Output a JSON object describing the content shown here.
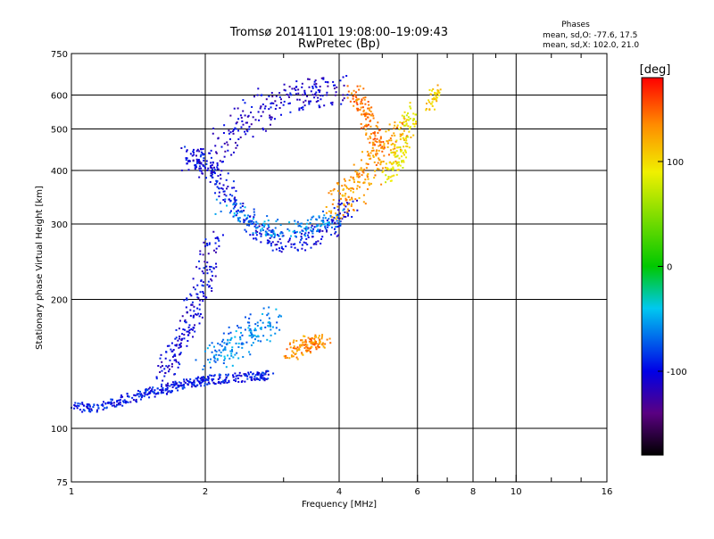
{
  "chart_data": {
    "type": "scatter",
    "title": "Tromsø 20141101 19:08:00–19:09:43",
    "subtitle": "RwPretec (Bp)",
    "stats": {
      "heading": "Phases",
      "line_o": "mean, sd,O: -77.6, 17.5",
      "line_x": "mean, sd,X: 102.0, 21.0"
    },
    "xlabel": "Frequency [MHz]",
    "ylabel": "Stationary phase Virtual Height [km]",
    "x_scale": "log",
    "y_scale": "log",
    "xlim": [
      1,
      16
    ],
    "ylim": [
      75,
      750
    ],
    "x_ticks": [
      {
        "value": 1,
        "label": "1"
      },
      {
        "value": 2,
        "label": "2"
      },
      {
        "value": 4,
        "label": "4"
      },
      {
        "value": 6,
        "label": "6"
      },
      {
        "value": 8,
        "label": "8"
      },
      {
        "value": 10,
        "label": "10"
      },
      {
        "value": 16,
        "label": "16"
      }
    ],
    "y_ticks": [
      {
        "value": 75,
        "label": "75"
      },
      {
        "value": 100,
        "label": "100"
      },
      {
        "value": 200,
        "label": "200"
      },
      {
        "value": 300,
        "label": "300"
      },
      {
        "value": 400,
        "label": "400"
      },
      {
        "value": 500,
        "label": "500"
      },
      {
        "value": 600,
        "label": "600"
      },
      {
        "value": 750,
        "label": "750"
      }
    ],
    "grid": true,
    "colorbar": {
      "label": "[deg]",
      "range": [
        -180,
        180
      ],
      "ticks": [
        {
          "value": 100,
          "label": "100"
        },
        {
          "value": 0,
          "label": "0"
        },
        {
          "value": -100,
          "label": "-100"
        }
      ]
    },
    "traces": [
      {
        "x": [
          1.0,
          1.15,
          1.3,
          1.45,
          1.6,
          1.75,
          1.9,
          2.05,
          2.3,
          2.6,
          2.8
        ],
        "y": [
          112,
          112,
          116,
          120,
          123,
          126,
          128,
          130,
          131,
          132,
          133
        ],
        "phase": -95,
        "spread": 0.05
      },
      {
        "x": [
          1.6,
          1.7,
          1.8,
          1.9,
          2.0,
          2.1
        ],
        "y": [
          130,
          150,
          170,
          195,
          230,
          280
        ],
        "phase": -105,
        "spread": 0.1
      },
      {
        "x": [
          2.0,
          2.2,
          2.4,
          2.6,
          2.8
        ],
        "y": [
          140,
          150,
          160,
          170,
          180
        ],
        "phase": -60,
        "spread": 0.15
      },
      {
        "x": [
          1.85,
          1.95,
          2.1,
          2.3,
          2.6,
          3.0,
          3.4,
          3.9,
          4.2
        ],
        "y": [
          440,
          420,
          390,
          340,
          290,
          270,
          275,
          300,
          330
        ],
        "phase": -100,
        "spread": 0.1
      },
      {
        "x": [
          1.9,
          2.2,
          2.5,
          2.8,
          3.2,
          3.6,
          4.0
        ],
        "y": [
          400,
          460,
          520,
          580,
          600,
          610,
          620
        ],
        "phase": -110,
        "spread": 0.15
      },
      {
        "x": [
          2.2,
          2.6,
          3.0,
          3.5,
          3.9
        ],
        "y": [
          330,
          300,
          290,
          295,
          310
        ],
        "phase": -60,
        "spread": 0.1
      },
      {
        "x": [
          3.1,
          3.3,
          3.5,
          3.7
        ],
        "y": [
          150,
          155,
          160,
          158
        ],
        "phase": 135,
        "spread": 0.08
      },
      {
        "x": [
          3.9,
          4.2,
          4.5,
          4.8,
          5.2,
          5.6
        ],
        "y": [
          330,
          350,
          380,
          420,
          460,
          500
        ],
        "phase": 130,
        "spread": 0.15
      },
      {
        "x": [
          4.3,
          4.5,
          4.7,
          4.9
        ],
        "y": [
          620,
          560,
          500,
          450
        ],
        "phase": 140,
        "spread": 0.08
      },
      {
        "x": [
          5.2,
          5.4,
          5.6,
          5.8
        ],
        "y": [
          380,
          420,
          480,
          560
        ],
        "phase": 90,
        "spread": 0.08
      },
      {
        "x": [
          6.4,
          6.6
        ],
        "y": [
          560,
          620
        ],
        "phase": 110,
        "spread": 0.05
      }
    ]
  }
}
